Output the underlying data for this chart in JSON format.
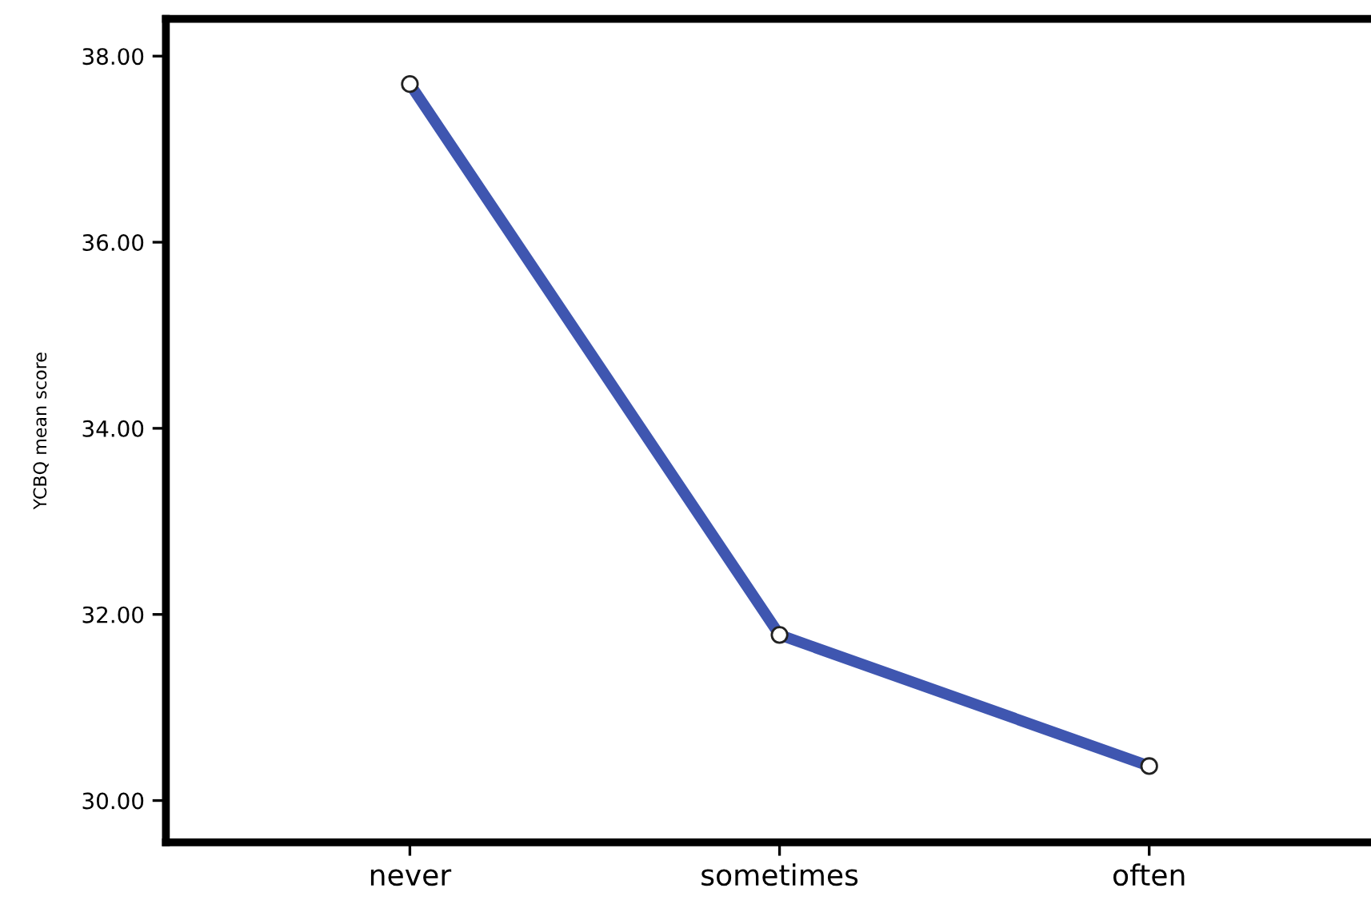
{
  "chart_data": {
    "type": "line",
    "ylabel": "YCBQ mean score",
    "categories": [
      "never",
      "sometimes",
      "often"
    ],
    "series": [
      {
        "color": "#3f56b0",
        "values": [
          37.7,
          31.78,
          30.37
        ]
      }
    ],
    "ylim": [
      29.55,
      38.4
    ],
    "yticks": [
      {
        "value": 30,
        "label": "30.00"
      },
      {
        "value": 32,
        "label": "32.00"
      },
      {
        "value": 34,
        "label": "34.00"
      },
      {
        "value": 36,
        "label": "36.00"
      },
      {
        "value": 38,
        "label": "38.00"
      }
    ],
    "marker": "circle",
    "line_style": "solid",
    "grid": false,
    "legend": false
  }
}
